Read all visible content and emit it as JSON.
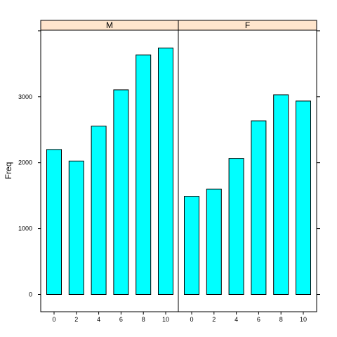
{
  "chart_data": {
    "type": "bar",
    "layout": "lattice-panels",
    "ylabel": "Freq",
    "xlabel": "",
    "ylim": [
      0,
      4000
    ],
    "yticks": [
      0,
      1000,
      2000,
      3000
    ],
    "categories": [
      "0",
      "2",
      "4",
      "6",
      "8",
      "10"
    ],
    "bar_color": "#00FFFF",
    "strip_color": "#FFE5CC",
    "panels": [
      {
        "label": "M",
        "values": [
          2200,
          2025,
          2555,
          3105,
          3635,
          3740
        ]
      },
      {
        "label": "F",
        "values": [
          1490,
          1600,
          2065,
          2635,
          3030,
          2935
        ]
      }
    ]
  }
}
